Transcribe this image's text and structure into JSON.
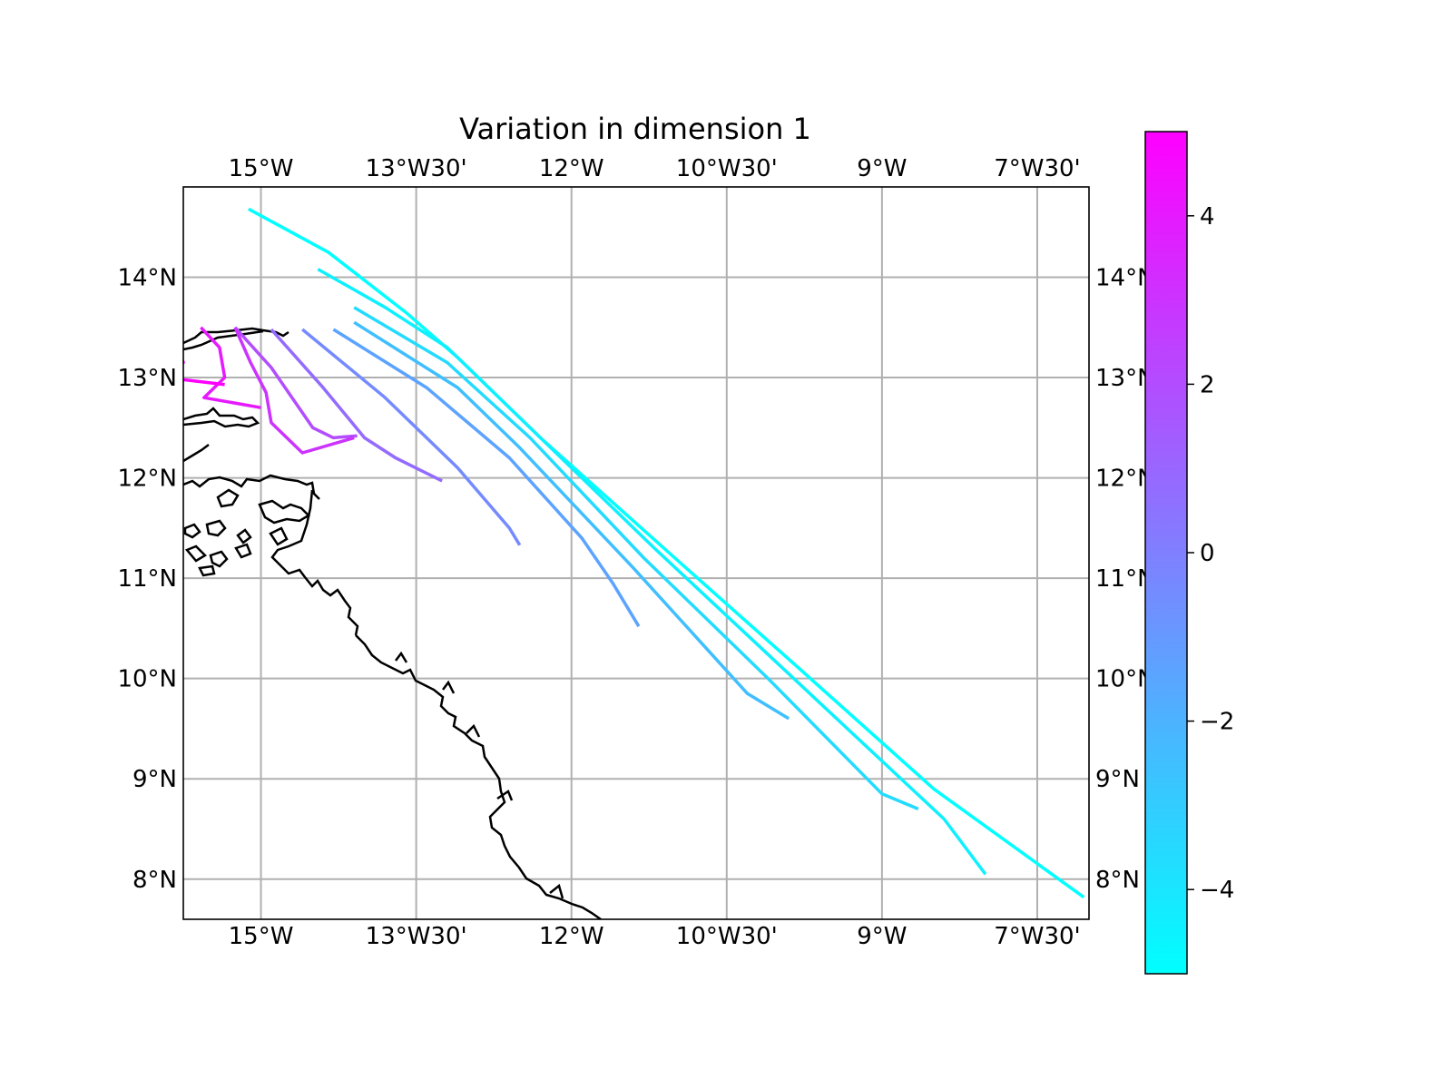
{
  "title": "Variation in dimension 1",
  "lon_range": [
    -15.75,
    -7.0
  ],
  "lat_range": [
    7.6,
    14.9
  ],
  "lon_ticks": [
    {
      "value": -15.0,
      "label": "15°W"
    },
    {
      "value": -13.5,
      "label": "13°W30'"
    },
    {
      "value": -12.0,
      "label": "12°W"
    },
    {
      "value": -10.5,
      "label": "10°W30'"
    },
    {
      "value": -9.0,
      "label": "9°W"
    },
    {
      "value": -7.5,
      "label": "7°W30'"
    }
  ],
  "lat_ticks": [
    {
      "value": 14,
      "label": "14°N"
    },
    {
      "value": 13,
      "label": "13°N"
    },
    {
      "value": 12,
      "label": "12°N"
    },
    {
      "value": 11,
      "label": "11°N"
    },
    {
      "value": 10,
      "label": "10°N"
    },
    {
      "value": 9,
      "label": "9°N"
    },
    {
      "value": 8,
      "label": "8°N"
    }
  ],
  "colorbar": {
    "range": [
      -5,
      5
    ],
    "colormap": "cool",
    "low_color": "#00ffff",
    "high_color": "#ff00ff",
    "ticks": [
      {
        "value": 4,
        "label": "4"
      },
      {
        "value": 2,
        "label": "2"
      },
      {
        "value": 0,
        "label": "0"
      },
      {
        "value": -2,
        "label": "−2"
      },
      {
        "value": -4,
        "label": "−4"
      }
    ]
  },
  "chart_data": {
    "type": "line",
    "title": "Variation in dimension 1",
    "xlabel": "",
    "ylabel": "",
    "grid": true,
    "colorbar_position": "right",
    "xlim": [
      -15.75,
      -7.0
    ],
    "ylim": [
      7.6,
      14.9
    ],
    "series": [
      {
        "value": -5.0,
        "points": [
          [
            -15.12,
            14.68
          ],
          [
            -14.35,
            14.25
          ],
          [
            -13.6,
            13.65
          ],
          [
            -13.1,
            13.2
          ],
          [
            -12.3,
            12.4
          ],
          [
            -11.0,
            11.2
          ],
          [
            -9.8,
            10.1
          ],
          [
            -8.5,
            8.9
          ],
          [
            -7.05,
            7.82
          ]
        ]
      },
      {
        "value": -4.4,
        "points": [
          [
            -14.45,
            14.08
          ],
          [
            -13.8,
            13.7
          ],
          [
            -13.2,
            13.3
          ],
          [
            -12.5,
            12.6
          ],
          [
            -11.2,
            11.3
          ],
          [
            -9.8,
            9.95
          ],
          [
            -8.4,
            8.6
          ],
          [
            -8.0,
            8.05
          ]
        ]
      },
      {
        "value": -3.6,
        "points": [
          [
            -14.1,
            13.7
          ],
          [
            -13.2,
            13.15
          ],
          [
            -12.4,
            12.4
          ],
          [
            -11.3,
            11.2
          ],
          [
            -10.1,
            10.0
          ],
          [
            -9.0,
            8.85
          ],
          [
            -8.65,
            8.7
          ]
        ]
      },
      {
        "value": -2.5,
        "points": [
          [
            -14.1,
            13.55
          ],
          [
            -13.1,
            12.9
          ],
          [
            -12.5,
            12.3
          ],
          [
            -11.4,
            11.1
          ],
          [
            -10.3,
            9.85
          ],
          [
            -9.9,
            9.6
          ]
        ]
      },
      {
        "value": -1.4,
        "points": [
          [
            -14.3,
            13.48
          ],
          [
            -13.4,
            12.9
          ],
          [
            -12.6,
            12.2
          ],
          [
            -11.9,
            11.4
          ],
          [
            -11.6,
            10.95
          ],
          [
            -11.35,
            10.52
          ]
        ]
      },
      {
        "value": -0.4,
        "points": [
          [
            -14.6,
            13.48
          ],
          [
            -13.8,
            12.8
          ],
          [
            -13.1,
            12.1
          ],
          [
            -12.6,
            11.5
          ],
          [
            -12.5,
            11.33
          ]
        ]
      },
      {
        "value": 0.8,
        "points": [
          [
            -14.9,
            13.48
          ],
          [
            -14.4,
            12.9
          ],
          [
            -14.0,
            12.4
          ],
          [
            -13.7,
            12.2
          ],
          [
            -13.25,
            11.97
          ]
        ]
      },
      {
        "value": 2.0,
        "points": [
          [
            -15.25,
            13.5
          ],
          [
            -14.9,
            13.1
          ],
          [
            -14.5,
            12.5
          ],
          [
            -14.3,
            12.4
          ],
          [
            -14.07,
            12.42
          ]
        ]
      },
      {
        "value": 3.0,
        "points": [
          [
            -15.25,
            13.5
          ],
          [
            -15.1,
            13.15
          ],
          [
            -14.95,
            12.85
          ],
          [
            -14.9,
            12.55
          ],
          [
            -14.6,
            12.25
          ],
          [
            -14.1,
            12.4
          ]
        ]
      },
      {
        "value": 4.0,
        "points": [
          [
            -15.58,
            13.5
          ],
          [
            -15.4,
            13.3
          ],
          [
            -15.35,
            13.0
          ],
          [
            -15.55,
            12.8
          ],
          [
            -15.0,
            12.7
          ]
        ]
      },
      {
        "value": 5.0,
        "points": [
          [
            -15.98,
            13.52
          ],
          [
            -15.82,
            13.35
          ],
          [
            -15.75,
            13.15
          ],
          [
            -15.92,
            13.0
          ],
          [
            -15.35,
            12.93
          ]
        ]
      }
    ]
  }
}
